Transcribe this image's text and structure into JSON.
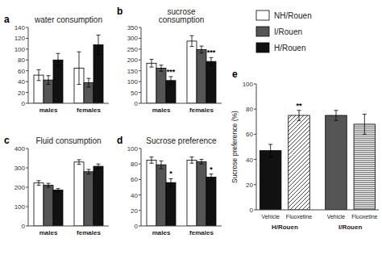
{
  "chart_data": [
    {
      "type": "bar",
      "title": "water consumption",
      "categories": [
        "males",
        "females"
      ],
      "series": [
        {
          "name": "NH/Rouen",
          "color": "white",
          "values": [
            52,
            65
          ],
          "errors": [
            10,
            30
          ]
        },
        {
          "name": "I/Rouen",
          "color": "#555555",
          "values": [
            43,
            38
          ],
          "errors": [
            8,
            8
          ]
        },
        {
          "name": "H/Rouen",
          "color": "#111111",
          "values": [
            80,
            108
          ],
          "errors": [
            12,
            18
          ]
        }
      ],
      "ylim": [
        0,
        140
      ],
      "yticks": [
        0,
        20,
        40,
        60,
        80,
        100,
        120,
        140
      ],
      "annotations": [
        {
          "text": "a"
        }
      ]
    },
    {
      "type": "bar",
      "title": "sucrose\nconsumption",
      "categories": [
        "males",
        "females"
      ],
      "series": [
        {
          "color": "white",
          "values": [
            185,
            287
          ],
          "errors": [
            18,
            25
          ]
        },
        {
          "color": "#555555",
          "values": [
            162,
            248
          ],
          "errors": [
            14,
            16
          ]
        },
        {
          "color": "#111111",
          "values": [
            105,
            193
          ],
          "errors": [
            18,
            18
          ]
        }
      ],
      "ylim": [
        0,
        350
      ],
      "yticks": [
        0,
        50,
        100,
        150,
        200,
        250,
        300,
        350
      ],
      "annotations": [
        {
          "text": "b"
        },
        {
          "text": "***",
          "series": 2,
          "index": 0
        },
        {
          "text": "***",
          "series": 2,
          "index": 1
        }
      ]
    },
    {
      "type": "bar",
      "title": "Fluid consumption",
      "categories": [
        "males",
        "females"
      ],
      "series": [
        {
          "color": "white",
          "values": [
            222,
            330
          ],
          "errors": [
            12,
            12
          ]
        },
        {
          "color": "#555555",
          "values": [
            210,
            280
          ],
          "errors": [
            10,
            12
          ]
        },
        {
          "color": "#111111",
          "values": [
            185,
            308
          ],
          "errors": [
            8,
            12
          ]
        }
      ],
      "ylim": [
        0,
        400
      ],
      "yticks": [
        0,
        100,
        200,
        300,
        400
      ],
      "annotations": [
        {
          "text": "c"
        }
      ]
    },
    {
      "type": "bar",
      "title": "Sucrose preference",
      "categories": [
        "males",
        "females"
      ],
      "series": [
        {
          "color": "white",
          "values": [
            85,
            85
          ],
          "errors": [
            4,
            4
          ]
        },
        {
          "color": "#555555",
          "values": [
            79,
            83
          ],
          "errors": [
            5,
            3
          ]
        },
        {
          "color": "#111111",
          "values": [
            56,
            63
          ],
          "errors": [
            5,
            4
          ]
        }
      ],
      "ylim": [
        0,
        100
      ],
      "yticks": [
        0,
        20,
        40,
        60,
        80,
        100
      ],
      "annotations": [
        {
          "text": "d"
        },
        {
          "text": "*",
          "series": 2,
          "index": 0
        },
        {
          "text": "*",
          "series": 2,
          "index": 1
        }
      ]
    },
    {
      "type": "bar",
      "ylabel": "Sucrose preference (%)",
      "categories": [
        "Vehicle",
        "Fluoxetine",
        "Vehicle",
        "Fluoxetine"
      ],
      "groups": [
        "H/Rouen",
        "H/Rouen",
        "I/Rouen",
        "I/Rouen"
      ],
      "values": [
        47,
        75,
        75,
        68
      ],
      "errors": [
        5,
        4,
        4,
        8
      ],
      "colors": [
        "#111111",
        "white",
        "#555555",
        "white"
      ],
      "ylim": [
        0,
        100
      ],
      "yticks": [
        0,
        20,
        40,
        60,
        80,
        100
      ],
      "annotations": [
        {
          "text": "e"
        },
        {
          "text": "**",
          "index": 1
        }
      ]
    }
  ]
}
